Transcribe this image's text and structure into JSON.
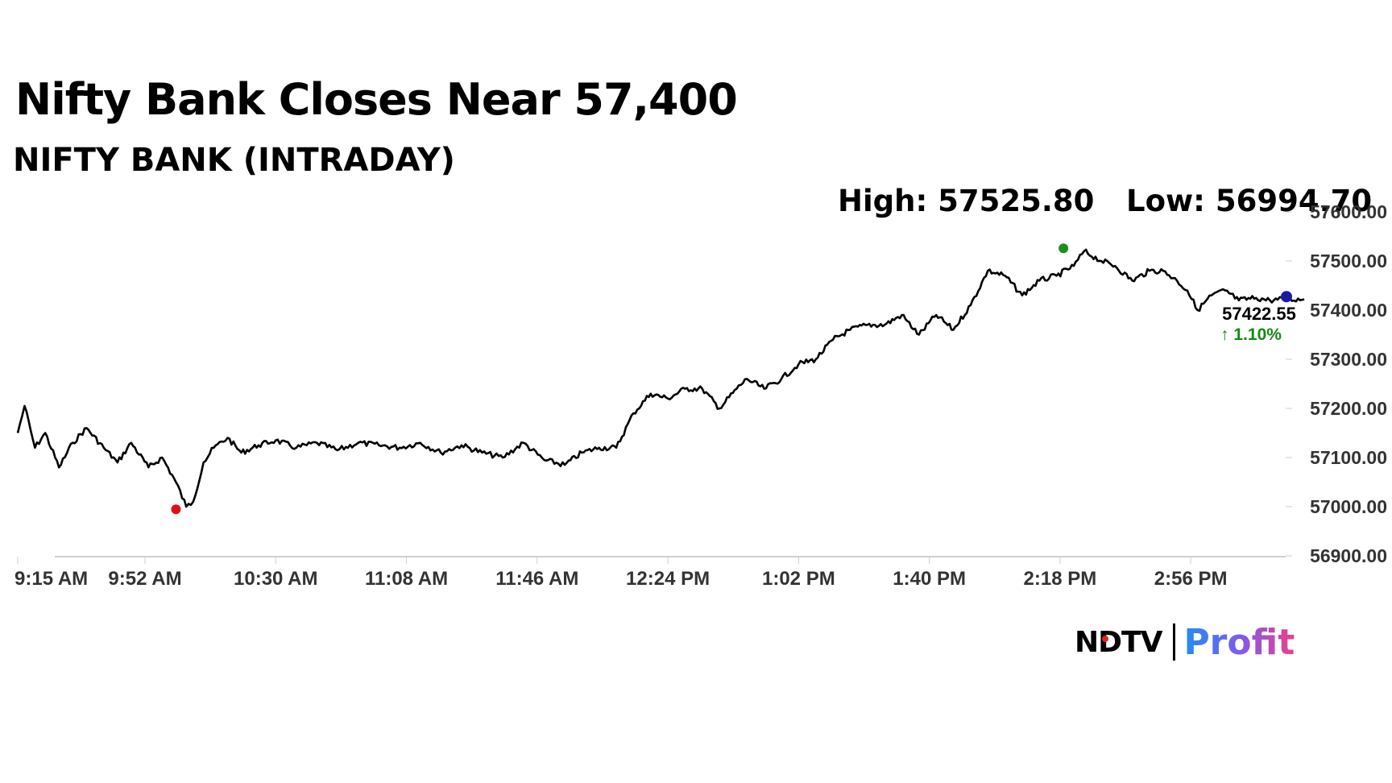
{
  "title": "Nifty Bank Closes Near 57,400",
  "subtitle": "NIFTY BANK (INTRADAY)",
  "high_label": "High: 57525.80",
  "low_label": "Low: 56994.70",
  "last_price": "57422.55",
  "change": "↑ 1.10%",
  "brand": {
    "left": "NDTV",
    "right": "Profit"
  },
  "colors": {
    "line": "#000000",
    "high_marker": "#1a8f1a",
    "low_marker": "#e01010",
    "last_marker": "#1a1aa8",
    "change": "#138a13",
    "axis": "#cfcfcf"
  },
  "chart_data": {
    "type": "line",
    "title": "NIFTY BANK (INTRADAY)",
    "xlabel": "",
    "ylabel": "",
    "ylim": [
      56900,
      57600
    ],
    "y_ticks": [
      "56900.00",
      "57000.00",
      "57100.00",
      "57200.00",
      "57300.00",
      "57400.00",
      "57500.00",
      "57600.00"
    ],
    "x_ticks": [
      "9:15 AM",
      "9:52 AM",
      "10:30 AM",
      "11:08 AM",
      "11:46 AM",
      "12:24 PM",
      "1:02 PM",
      "1:40 PM",
      "2:18 PM",
      "2:56 PM"
    ],
    "grid": false,
    "series": [
      {
        "x": [
          "9:15 AM",
          "9:17 AM",
          "9:20 AM",
          "9:23 AM",
          "9:27 AM",
          "9:31 AM",
          "9:35 AM",
          "9:40 AM",
          "9:44 AM",
          "9:48 AM",
          "9:53 AM",
          "9:57 AM",
          "10:01 AM",
          "10:04 AM",
          "10:06 AM",
          "10:09 AM",
          "10:12 AM",
          "10:16 AM",
          "10:20 AM",
          "10:25 AM",
          "10:30 AM",
          "10:36 AM",
          "10:42 AM",
          "10:48 AM",
          "10:54 AM",
          "11:00 AM",
          "11:06 AM",
          "11:12 AM",
          "11:18 AM",
          "11:24 AM",
          "11:30 AM",
          "11:36 AM",
          "11:42 AM",
          "11:48 AM",
          "11:54 AM",
          "11:59 AM",
          "12:04 PM",
          "12:09 PM",
          "12:14 PM",
          "12:19 PM",
          "12:24 PM",
          "12:29 PM",
          "12:34 PM",
          "12:39 PM",
          "12:44 PM",
          "12:47 PM",
          "12:52 PM",
          "12:57 PM",
          "1:02 PM",
          "1:07 PM",
          "1:12 PM",
          "1:17 PM",
          "1:22 PM",
          "1:27 PM",
          "1:32 PM",
          "1:37 PM",
          "1:42 PM",
          "1:47 PM",
          "1:52 PM",
          "1:57 PM",
          "2:02 PM",
          "2:07 PM",
          "2:12 PM",
          "2:17 PM",
          "2:22 PM",
          "2:25 PM",
          "2:30 PM",
          "2:34 PM",
          "2:39 PM",
          "2:44 PM",
          "2:48 PM",
          "2:52 PM",
          "2:55 PM",
          "2:58 PM",
          "3:02 PM",
          "3:06 PM",
          "3:10 PM",
          "3:15 PM",
          "3:19 PM",
          "3:23 PM",
          "3:29 PM"
        ],
        "y": [
          57150,
          57205,
          57120,
          57150,
          57080,
          57130,
          57160,
          57120,
          57090,
          57130,
          57080,
          57100,
          57050,
          57000,
          57010,
          57090,
          57120,
          57140,
          57110,
          57125,
          57135,
          57120,
          57130,
          57115,
          57130,
          57125,
          57120,
          57130,
          57110,
          57125,
          57110,
          57100,
          57130,
          57095,
          57085,
          57110,
          57120,
          57120,
          57190,
          57230,
          57220,
          57240,
          57240,
          57200,
          57240,
          57260,
          57240,
          57260,
          57290,
          57300,
          57340,
          57360,
          57370,
          57370,
          57390,
          57350,
          57390,
          57360,
          57410,
          57480,
          57470,
          57430,
          57460,
          57470,
          57490,
          57520,
          57500,
          57490,
          57460,
          57480,
          57480,
          57460,
          57440,
          57400,
          57430,
          57440,
          57420,
          57425,
          57420,
          57422,
          57422
        ]
      }
    ],
    "annotations": [
      {
        "label": "High: 57525.80",
        "x": "2:19 PM",
        "y": 57525.8
      },
      {
        "label": "Low: 56994.70",
        "x": "10:01 AM",
        "y": 56994.7
      },
      {
        "label": "57422.55",
        "x": "3:29 PM",
        "y": 57422.55
      },
      {
        "label": "↑ 1.10%"
      }
    ]
  }
}
